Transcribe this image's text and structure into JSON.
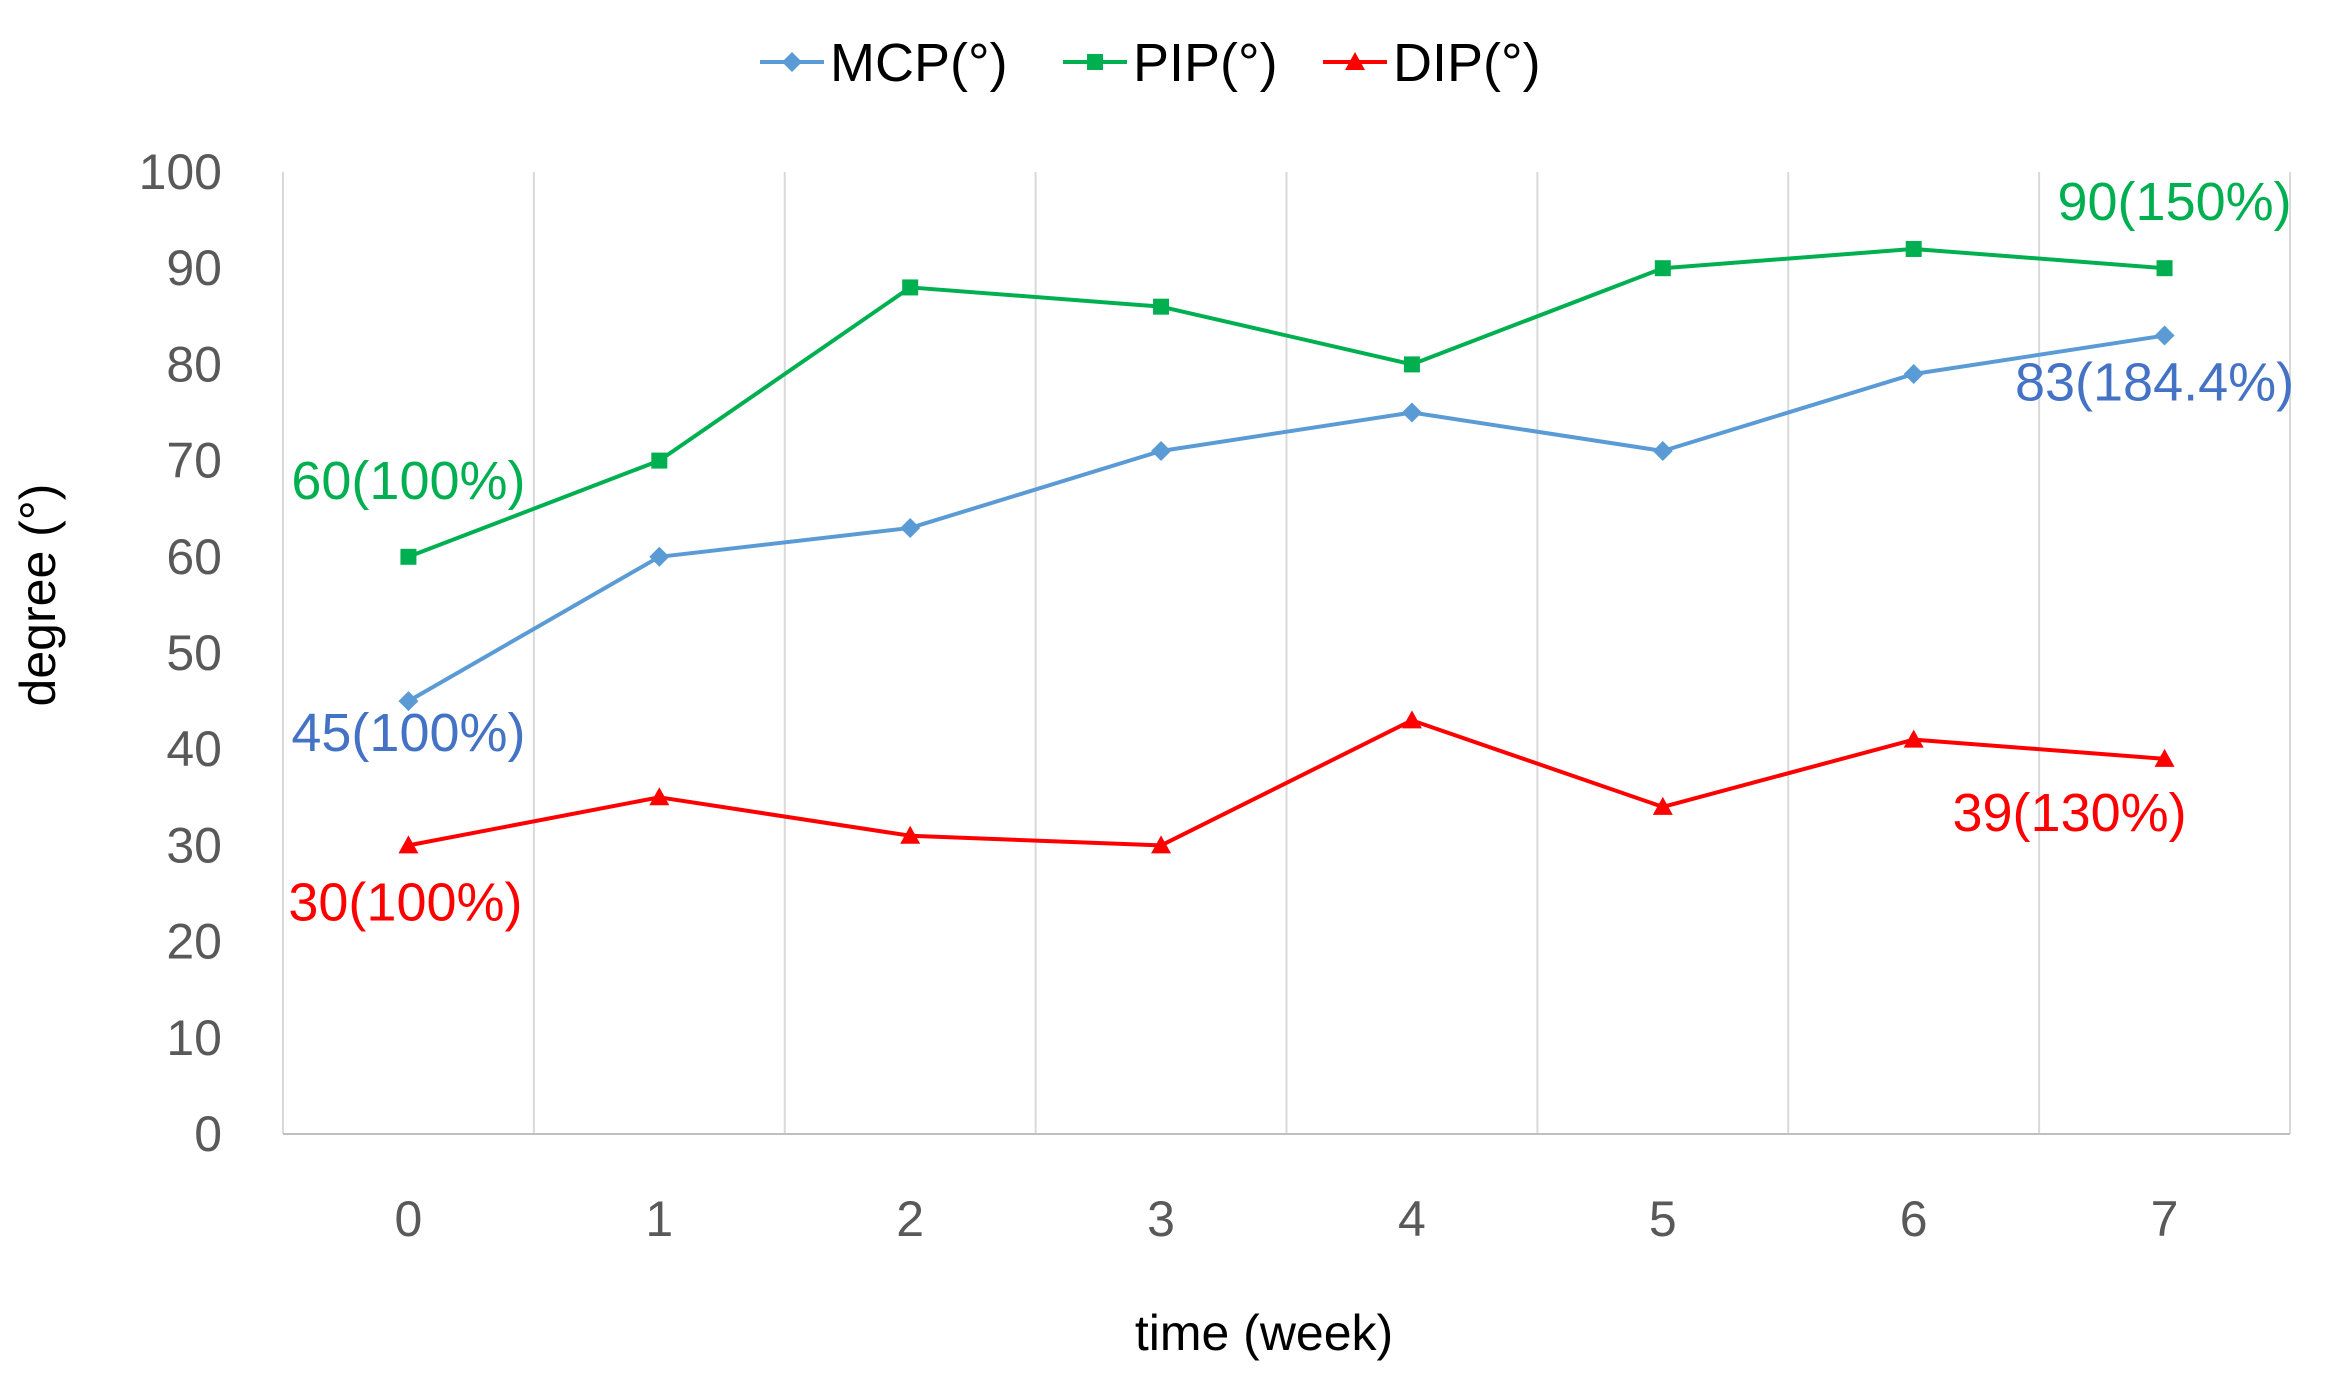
{
  "chart_data": {
    "type": "line",
    "title": "",
    "xlabel": "time (week)",
    "ylabel": "degree (°)",
    "categories": [
      "0",
      "1",
      "2",
      "3",
      "4",
      "5",
      "6",
      "7"
    ],
    "ylim": [
      0,
      100
    ],
    "yticks": [
      "0",
      "10",
      "20",
      "30",
      "40",
      "50",
      "60",
      "70",
      "80",
      "90",
      "100"
    ],
    "grid": "vertical",
    "legend_position": "top-center",
    "series": [
      {
        "name": "MCP(°)",
        "color": "#5b9bd5",
        "label_color": "#4472c4",
        "marker": "diamond",
        "values": [
          45,
          60,
          63,
          71,
          75,
          71,
          79,
          83
        ],
        "annotations": [
          {
            "index": 0,
            "text": "45(100%)"
          },
          {
            "index": 7,
            "text": "83(184.4%)"
          }
        ]
      },
      {
        "name": "PIP(°)",
        "color": "#00b050",
        "label_color": "#00b050",
        "marker": "square",
        "values": [
          60,
          70,
          88,
          86,
          80,
          90,
          92,
          90
        ],
        "annotations": [
          {
            "index": 0,
            "text": "60(100%)"
          },
          {
            "index": 7,
            "text": "90(150%)"
          }
        ]
      },
      {
        "name": "DIP(°)",
        "color": "#ff0000",
        "label_color": "#ff0000",
        "marker": "triangle",
        "values": [
          30,
          35,
          31,
          30,
          43,
          34,
          41,
          39
        ],
        "annotations": [
          {
            "index": 0,
            "text": "30(100%)"
          },
          {
            "index": 7,
            "text": "39(130%)"
          }
        ]
      }
    ]
  }
}
